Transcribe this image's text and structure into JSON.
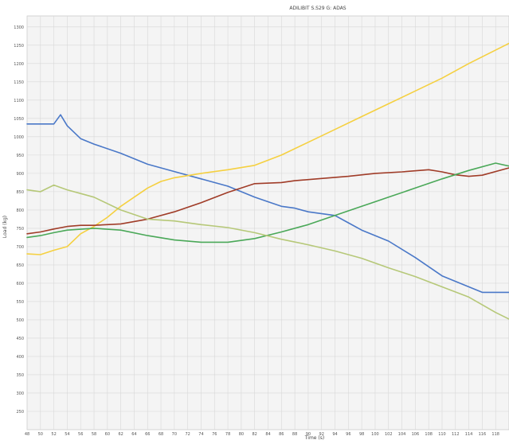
{
  "chart_data": {
    "type": "line",
    "title": "ADILIBIT S.S29 G: ADAS",
    "xlabel": "Time (s)",
    "ylabel": "Load (kg)",
    "xlim": [
      48,
      120
    ],
    "ylim": [
      200,
      1330
    ],
    "x_ticks": [
      48,
      50,
      52,
      54,
      56,
      58,
      60,
      62,
      64,
      66,
      68,
      70,
      72,
      74,
      76,
      78,
      80,
      82,
      84,
      86,
      88,
      90,
      92,
      94,
      96,
      98,
      100,
      102,
      104,
      106,
      108,
      110,
      112,
      114,
      116,
      118
    ],
    "y_ticks": [
      250,
      300,
      350,
      400,
      450,
      500,
      550,
      600,
      650,
      700,
      750,
      800,
      850,
      900,
      950,
      1000,
      1050,
      1100,
      1150,
      1200,
      1250,
      1300
    ],
    "grid": true,
    "legend": "none",
    "series": [
      {
        "color": "#4a78c8",
        "x": [
          48,
          52,
          53,
          54,
          56,
          58,
          62,
          66,
          70,
          74,
          78,
          82,
          86,
          88,
          90,
          94,
          96,
          98,
          102,
          106,
          110,
          116,
          120
        ],
        "y": [
          1035,
          1035,
          1060,
          1030,
          995,
          980,
          955,
          925,
          905,
          885,
          865,
          835,
          810,
          805,
          795,
          785,
          765,
          745,
          715,
          670,
          620,
          575,
          575
        ]
      },
      {
        "color": "#f5d040",
        "x": [
          48,
          50,
          52,
          54,
          56,
          58,
          60,
          62,
          64,
          66,
          68,
          70,
          74,
          78,
          82,
          86,
          90,
          94,
          98,
          102,
          106,
          110,
          114,
          120
        ],
        "y": [
          680,
          678,
          690,
          700,
          735,
          755,
          780,
          810,
          835,
          860,
          878,
          888,
          900,
          910,
          922,
          950,
          985,
          1020,
          1055,
          1090,
          1125,
          1160,
          1200,
          1255
        ]
      },
      {
        "color": "#a03c28",
        "x": [
          48,
          50,
          52,
          54,
          56,
          58,
          62,
          66,
          70,
          74,
          78,
          82,
          86,
          88,
          92,
          96,
          100,
          104,
          108,
          110,
          112,
          114,
          116,
          120
        ],
        "y": [
          735,
          740,
          748,
          755,
          758,
          758,
          762,
          775,
          795,
          820,
          848,
          872,
          875,
          880,
          886,
          892,
          900,
          904,
          910,
          904,
          896,
          892,
          895,
          915
        ]
      },
      {
        "color": "#4aa858",
        "x": [
          48,
          50,
          52,
          54,
          58,
          62,
          66,
          70,
          74,
          78,
          82,
          86,
          90,
          94,
          98,
          102,
          106,
          110,
          114,
          118,
          120
        ],
        "y": [
          725,
          730,
          738,
          745,
          750,
          745,
          730,
          718,
          712,
          712,
          722,
          740,
          760,
          785,
          810,
          835,
          860,
          885,
          908,
          928,
          920
        ]
      },
      {
        "color": "#b6c878",
        "x": [
          48,
          50,
          52,
          54,
          56,
          58,
          62,
          66,
          70,
          74,
          78,
          82,
          86,
          90,
          94,
          98,
          102,
          106,
          110,
          114,
          118,
          120
        ],
        "y": [
          855,
          850,
          868,
          855,
          845,
          835,
          800,
          775,
          770,
          760,
          752,
          738,
          720,
          705,
          688,
          668,
          642,
          618,
          590,
          562,
          520,
          502
        ]
      }
    ]
  }
}
